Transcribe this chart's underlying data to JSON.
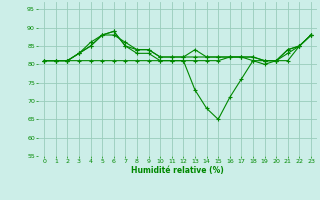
{
  "background_color": "#cceee8",
  "grid_color": "#99ccbb",
  "line_color": "#008800",
  "marker_color": "#008800",
  "xlabel": "Humidité relative (%)",
  "xlabel_color": "#008800",
  "tick_color": "#008800",
  "ylim": [
    55,
    97
  ],
  "yticks": [
    55,
    60,
    65,
    70,
    75,
    80,
    85,
    90,
    95
  ],
  "xlim": [
    -0.5,
    23.5
  ],
  "xticks": [
    0,
    1,
    2,
    3,
    4,
    5,
    6,
    7,
    8,
    9,
    10,
    11,
    12,
    13,
    14,
    15,
    16,
    17,
    18,
    19,
    20,
    21,
    22,
    23
  ],
  "series": [
    [
      81,
      81,
      81,
      83,
      85,
      88,
      89,
      85,
      83,
      83,
      81,
      81,
      81,
      81,
      81,
      81,
      82,
      82,
      82,
      81,
      81,
      81,
      85,
      88
    ],
    [
      81,
      81,
      81,
      83,
      86,
      88,
      88,
      86,
      84,
      84,
      82,
      82,
      82,
      82,
      82,
      82,
      82,
      82,
      81,
      81,
      81,
      84,
      85,
      88
    ],
    [
      81,
      81,
      81,
      83,
      85,
      88,
      89,
      85,
      84,
      84,
      82,
      82,
      82,
      84,
      82,
      82,
      82,
      82,
      82,
      81,
      81,
      83,
      85,
      88
    ],
    [
      81,
      81,
      81,
      81,
      81,
      81,
      81,
      81,
      81,
      81,
      81,
      81,
      81,
      73,
      68,
      65,
      71,
      76,
      81,
      80,
      81,
      84,
      85,
      88
    ]
  ]
}
